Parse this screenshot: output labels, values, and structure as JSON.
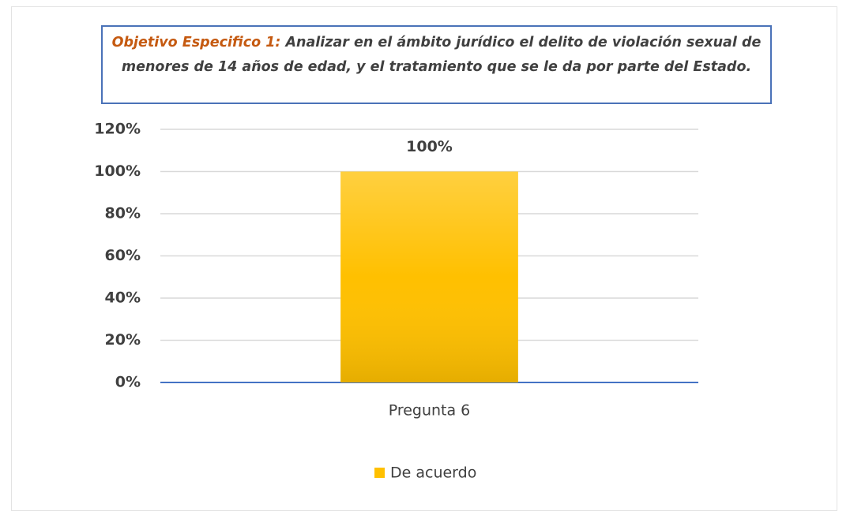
{
  "chart_data": {
    "type": "bar",
    "title": {
      "lead": "Objetivo Especifico 1:",
      "text": "Analizar en el ámbito jurídico el delito de violación sexual de menores de 14 años de edad, y el tratamiento que se le da por parte del Estado."
    },
    "categories": [
      "Pregunta 6"
    ],
    "series": [
      {
        "name": "De acuerdo",
        "color": "#ffc000",
        "values": [
          100
        ],
        "value_labels": [
          "100%"
        ]
      }
    ],
    "ylim": [
      0,
      120
    ],
    "yticks": [
      {
        "value": 0,
        "label": "0%"
      },
      {
        "value": 20,
        "label": "20%"
      },
      {
        "value": 40,
        "label": "40%"
      },
      {
        "value": 60,
        "label": "60%"
      },
      {
        "value": 80,
        "label": "80%"
      },
      {
        "value": 100,
        "label": "100%"
      },
      {
        "value": 120,
        "label": "120%"
      }
    ],
    "grid": true,
    "legend": "bottom"
  }
}
